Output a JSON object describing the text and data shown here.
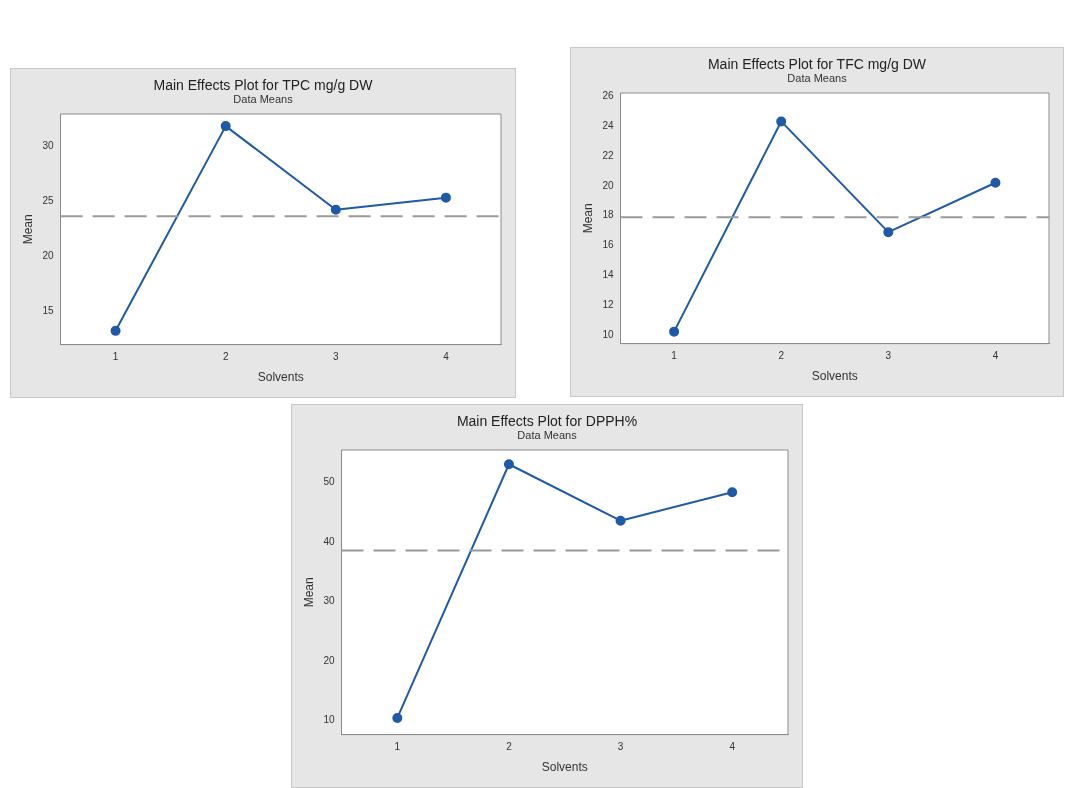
{
  "chart_data": [
    {
      "type": "line",
      "title": "Main Effects Plot for TPC mg/g DW",
      "subtitle": "Data Means",
      "xlabel": "Solvents",
      "ylabel": "Mean",
      "categories": [
        "1",
        "2",
        "3",
        "4"
      ],
      "series": [
        {
          "color": "#1f5aa6",
          "values": [
            13.2,
            31.8,
            24.2,
            25.3
          ]
        }
      ],
      "ylim": [
        11.95,
        32.9
      ],
      "yticks": [
        15,
        20,
        25,
        30
      ],
      "marker": "circle",
      "line_style": "solid",
      "grid": false,
      "legend": false,
      "ref_lines": [
        {
          "axis": "y",
          "value": 23.6,
          "color": "#9a9a9a",
          "line_style": "dashed"
        }
      ]
    },
    {
      "type": "line",
      "title": "Main Effects Plot for TFC mg/g DW",
      "subtitle": "Data Means",
      "xlabel": "Solvents",
      "ylabel": "Mean",
      "categories": [
        "1",
        "2",
        "3",
        "4"
      ],
      "series": [
        {
          "color": "#1f5aa6",
          "values": [
            10.25,
            24.3,
            16.9,
            20.2
          ]
        }
      ],
      "ylim": [
        9.45,
        26.2
      ],
      "yticks": [
        10,
        12,
        14,
        16,
        18,
        20,
        22,
        24,
        26
      ],
      "marker": "circle",
      "line_style": "solid",
      "grid": false,
      "legend": false,
      "ref_lines": [
        {
          "axis": "y",
          "value": 17.9,
          "color": "#9a9a9a",
          "line_style": "dashed"
        }
      ]
    },
    {
      "type": "line",
      "title": "Main Effects Plot for DPPH%",
      "subtitle": "Data Means",
      "xlabel": "Solvents",
      "ylabel": "Mean",
      "categories": [
        "1",
        "2",
        "3",
        "4"
      ],
      "series": [
        {
          "color": "#1f5aa6",
          "values": [
            10.4,
            53.1,
            43.6,
            48.4
          ]
        }
      ],
      "ylim": [
        7.6,
        55.5
      ],
      "yticks": [
        10,
        20,
        30,
        40,
        50
      ],
      "marker": "circle",
      "line_style": "solid",
      "grid": false,
      "legend": false,
      "ref_lines": [
        {
          "axis": "y",
          "value": 38.6,
          "color": "#9a9a9a",
          "line_style": "dashed"
        }
      ]
    }
  ]
}
